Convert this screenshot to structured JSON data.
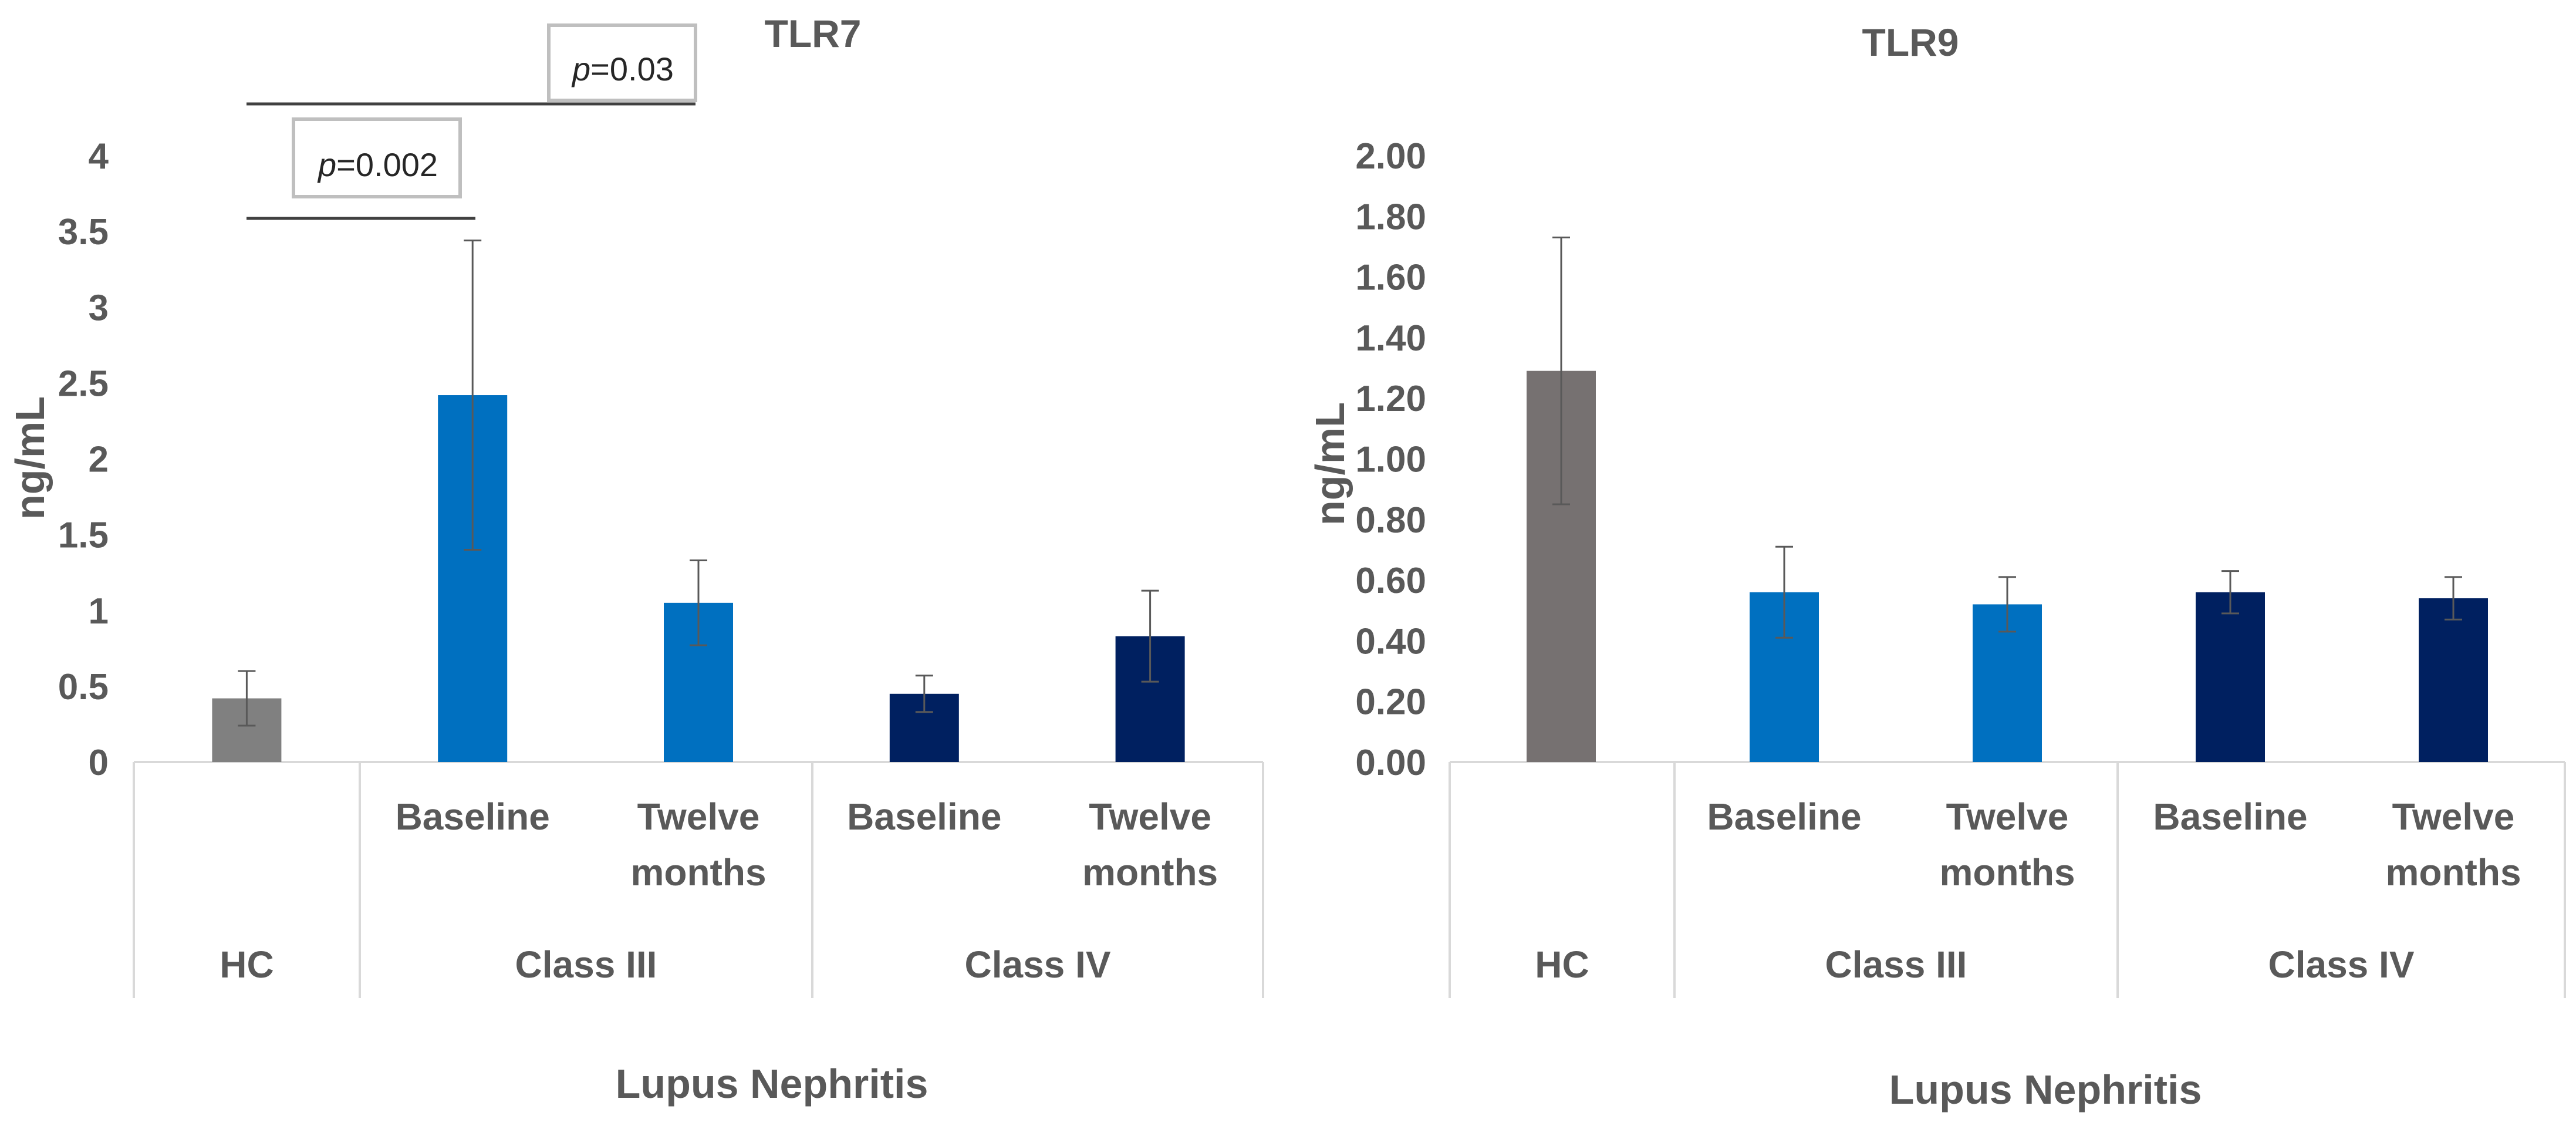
{
  "chart_data": [
    {
      "type": "bar",
      "title": "TLR7",
      "ylabel": "ng/mL",
      "xlabel": "Lupus Nephritis",
      "ylim": [
        0,
        4
      ],
      "yticks": [
        "0",
        "0.5",
        "1",
        "1.5",
        "2",
        "2.5",
        "3",
        "3.5",
        "4"
      ],
      "categories": [
        "",
        "Baseline",
        "Twelve months",
        "Baseline",
        "Twelve months"
      ],
      "category_lines": [
        [
          ""
        ],
        [
          "Baseline"
        ],
        [
          "Twelve",
          "months"
        ],
        [
          "Baseline"
        ],
        [
          "Twelve",
          "months"
        ]
      ],
      "groups": [
        "HC",
        "Class III",
        "Class IV"
      ],
      "values": [
        0.42,
        2.42,
        1.05,
        0.45,
        0.83
      ],
      "error": [
        0.18,
        1.02,
        0.28,
        0.12,
        0.3
      ],
      "colors": [
        "#808080",
        "#0070c0",
        "#0070c0",
        "#002060",
        "#002060"
      ],
      "annotations": [
        {
          "prefix": "p",
          "text": "=0.002"
        },
        {
          "prefix": "p",
          "text": "=0.03"
        }
      ]
    },
    {
      "type": "bar",
      "title": "TLR9",
      "ylabel": "ng/mL",
      "xlabel": "Lupus Nephritis",
      "ylim": [
        0,
        2
      ],
      "yticks": [
        "0.00",
        "0.20",
        "0.40",
        "0.60",
        "0.80",
        "1.00",
        "1.20",
        "1.40",
        "1.60",
        "1.80",
        "2.00"
      ],
      "categories": [
        "",
        "Baseline",
        "Twelve months",
        "Baseline",
        "Twelve months"
      ],
      "category_lines": [
        [
          ""
        ],
        [
          "Baseline"
        ],
        [
          "Twelve",
          "months"
        ],
        [
          "Baseline"
        ],
        [
          "Twelve",
          "months"
        ]
      ],
      "groups": [
        "HC",
        "Class III",
        "Class IV"
      ],
      "values": [
        1.29,
        0.56,
        0.52,
        0.56,
        0.54
      ],
      "error": [
        0.44,
        0.15,
        0.09,
        0.07,
        0.07
      ],
      "colors": [
        "#767171",
        "#0070c0",
        "#0070c0",
        "#002060",
        "#002060"
      ]
    }
  ]
}
